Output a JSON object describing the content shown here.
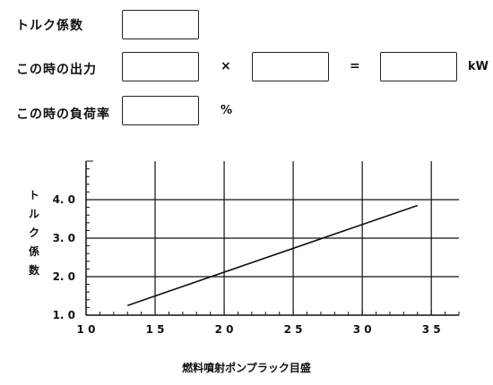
{
  "form": {
    "torque_label": "トルク係数",
    "output_label": "この時の出力",
    "load_label": "この時の負荷率",
    "multiply": "×",
    "equals": "=",
    "unit_kw": "kW",
    "unit_percent": "%"
  },
  "chart_data": {
    "type": "line",
    "xlabel": "燃料噴射ポンプラック目盛",
    "ylabel": "トルク係数",
    "ylabel_chars": [
      "ト",
      "ル",
      "ク",
      "係",
      "数"
    ],
    "xlim": [
      10,
      37
    ],
    "ylim": [
      1.0,
      5.0
    ],
    "x_ticks": [
      10,
      15,
      20,
      25,
      30,
      35
    ],
    "x_tick_labels": [
      "1 0",
      "1 5",
      "2 0",
      "2 5",
      "3 0",
      "3 5"
    ],
    "y_ticks": [
      1.0,
      2.0,
      3.0,
      4.0
    ],
    "y_tick_labels": [
      "1. 0",
      "2. 0",
      "3. 0",
      "4. 0"
    ],
    "grid": true,
    "series": [
      {
        "x": [
          13,
          34
        ],
        "y": [
          1.25,
          3.85
        ]
      }
    ]
  }
}
